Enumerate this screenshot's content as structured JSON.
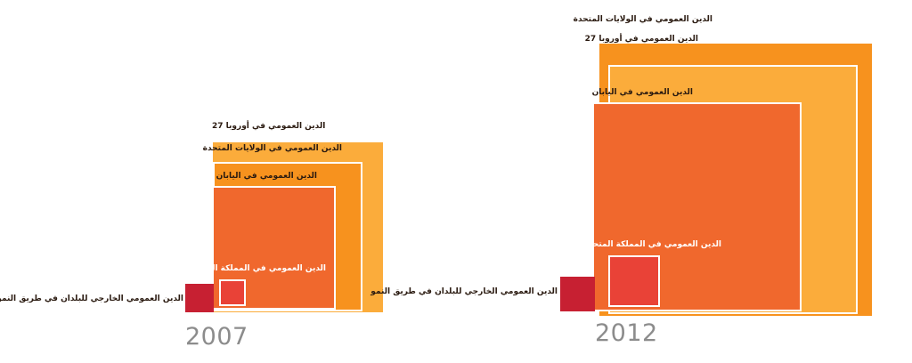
{
  "chart_data": [
    {
      "type": "nested-square",
      "year": "2007",
      "colors": {
        "eu27": "#fbac3b",
        "us": "#f7921e",
        "japan": "#f0682d",
        "uk": "#e94237",
        "developing": "#c72032"
      },
      "items": [
        {
          "key": "eu27",
          "label": "الدين العمومي في أوروبا 27",
          "value": 100
        },
        {
          "key": "us",
          "label": "الدين العمومي في الولايات المتحدة",
          "value": 77
        },
        {
          "key": "japan",
          "label": "الدين العمومي في اليابان",
          "value": 53
        },
        {
          "key": "uk",
          "label": "الدين العمومي في المملكة المتحدة",
          "value": 2.4
        },
        {
          "key": "developing",
          "label": "الدين العمومي الخارجي للبلدان في طريق النمو",
          "value": 2.8
        }
      ]
    },
    {
      "type": "nested-square",
      "year": "2012",
      "colors": {
        "us": "#f7921e",
        "eu27": "#fbac3b",
        "japan": "#f0682d",
        "uk": "#e94237",
        "developing": "#c72032"
      },
      "items": [
        {
          "key": "us",
          "label": "الدين العمومي في الولايات المتحدة",
          "value": 100
        },
        {
          "key": "eu27",
          "label": "الدين العمومي في أوروبا 27",
          "value": 84
        },
        {
          "key": "japan",
          "label": "الدين العمومي في اليابان",
          "value": 59
        },
        {
          "key": "uk",
          "label": "الدين العمومي في المملكة المتحدة",
          "value": 3.6
        },
        {
          "key": "developing",
          "label": "الدين العمومي الخارجي للبلدان في طريق النمو",
          "value": 1.6
        }
      ]
    }
  ]
}
